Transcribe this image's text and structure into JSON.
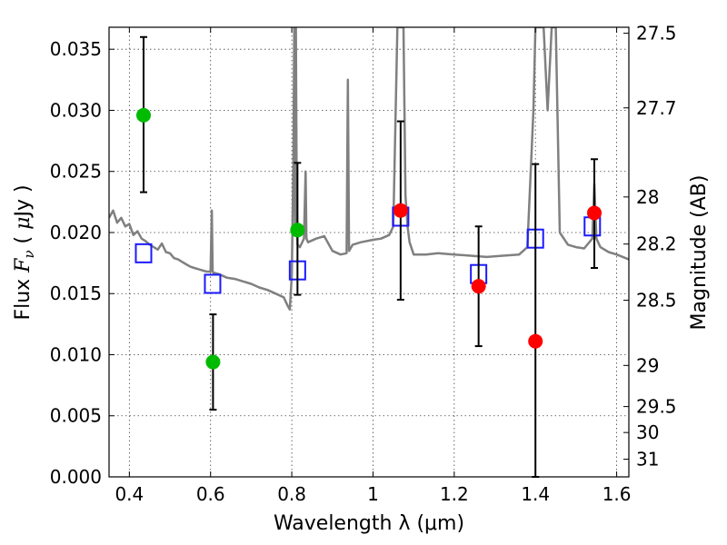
{
  "chart_data": {
    "type": "scatter",
    "xlabel": "Wavelength  λ (μm)",
    "ylabel": "Flux  F_ν  ( μJy )",
    "y2label": "Magnitude (AB)",
    "xlim": [
      0.35,
      1.63
    ],
    "ylim": [
      0.0,
      0.0368
    ],
    "grid": true,
    "x_ticks": [
      0.4,
      0.6,
      0.8,
      1.0,
      1.2,
      1.4,
      1.6
    ],
    "x_tick_labels": [
      "0.4",
      "0.6",
      "0.8",
      "1",
      "1.2",
      "1.4",
      "1.6"
    ],
    "y_ticks": [
      0.0,
      0.005,
      0.01,
      0.015,
      0.02,
      0.025,
      0.03,
      0.035
    ],
    "y_tick_labels": [
      "0.000",
      "0.005",
      "0.010",
      "0.015",
      "0.020",
      "0.025",
      "0.030",
      "0.035"
    ],
    "y2_ticks": [
      {
        "label": "27.5",
        "mag": 27.5
      },
      {
        "label": "27.7",
        "mag": 27.7
      },
      {
        "label": "28",
        "mag": 28.0
      },
      {
        "label": "28.2",
        "mag": 28.2
      },
      {
        "label": "28.5",
        "mag": 28.5
      },
      {
        "label": "29",
        "mag": 29.0
      },
      {
        "label": "29.5",
        "mag": 29.5
      },
      {
        "label": "30",
        "mag": 30.0
      },
      {
        "label": "31",
        "mag": 31.0
      }
    ],
    "series": [
      {
        "color": "#808080",
        "marker": "line",
        "x": [
          0.35,
          0.36,
          0.37,
          0.38,
          0.39,
          0.4,
          0.41,
          0.42,
          0.43,
          0.44,
          0.45,
          0.46,
          0.47,
          0.48,
          0.49,
          0.5,
          0.51,
          0.52,
          0.53,
          0.54,
          0.55,
          0.56,
          0.57,
          0.58,
          0.59,
          0.6,
          0.603,
          0.605,
          0.607,
          0.61,
          0.62,
          0.64,
          0.66,
          0.68,
          0.7,
          0.72,
          0.74,
          0.76,
          0.78,
          0.79,
          0.795,
          0.8,
          0.804,
          0.806,
          0.808,
          0.81,
          0.812,
          0.814,
          0.82,
          0.83,
          0.834,
          0.836,
          0.84,
          0.86,
          0.88,
          0.9,
          0.92,
          0.935,
          0.938,
          0.941,
          0.95,
          0.97,
          1.0,
          1.02,
          1.04,
          1.05,
          1.06,
          1.065,
          1.07,
          1.075,
          1.08,
          1.085,
          1.09,
          1.1,
          1.13,
          1.16,
          1.2,
          1.24,
          1.28,
          1.32,
          1.36,
          1.38,
          1.395,
          1.4,
          1.405,
          1.41,
          1.42,
          1.43,
          1.44,
          1.45,
          1.46,
          1.48,
          1.5,
          1.52,
          1.54,
          1.545,
          1.55,
          1.56,
          1.58,
          1.6,
          1.63
        ],
        "y": [
          0.0212,
          0.0218,
          0.0208,
          0.0212,
          0.0205,
          0.0207,
          0.0198,
          0.0201,
          0.0195,
          0.0193,
          0.019,
          0.0188,
          0.0186,
          0.0191,
          0.0184,
          0.0183,
          0.0179,
          0.0178,
          0.0176,
          0.0174,
          0.0172,
          0.0171,
          0.017,
          0.0169,
          0.0168,
          0.0168,
          0.0218,
          0.0168,
          0.0167,
          0.0167,
          0.0166,
          0.0163,
          0.0162,
          0.016,
          0.0158,
          0.0155,
          0.0153,
          0.015,
          0.0147,
          0.014,
          0.0137,
          0.0165,
          0.026,
          0.0368,
          0.02,
          0.0368,
          0.023,
          0.019,
          0.0188,
          0.0195,
          0.025,
          0.0195,
          0.0192,
          0.0195,
          0.0197,
          0.0185,
          0.0182,
          0.0183,
          0.0325,
          0.0185,
          0.019,
          0.0192,
          0.0194,
          0.0195,
          0.0198,
          0.0205,
          0.0368,
          0.0368,
          0.0368,
          0.0368,
          0.023,
          0.0205,
          0.0192,
          0.0182,
          0.0182,
          0.0183,
          0.0182,
          0.0181,
          0.018,
          0.0181,
          0.0182,
          0.0188,
          0.03,
          0.0368,
          0.0368,
          0.0368,
          0.0368,
          0.03,
          0.0368,
          0.0368,
          0.02,
          0.019,
          0.0188,
          0.0187,
          0.0195,
          0.024,
          0.0195,
          0.0188,
          0.0184,
          0.0182,
          0.0178
        ]
      },
      {
        "color": "#1a1aff",
        "marker": "square",
        "x": [
          0.435,
          0.605,
          0.814,
          1.068,
          1.26,
          1.4,
          1.54
        ],
        "y": [
          0.0183,
          0.0158,
          0.0169,
          0.0213,
          0.0166,
          0.0195,
          0.0205
        ]
      },
      {
        "color": "#00bb00",
        "marker": "circle",
        "x": [
          0.435,
          0.606,
          0.814
        ],
        "y": [
          0.0296,
          0.0094,
          0.0202
        ],
        "yerr_low": [
          0.0233,
          0.0055,
          0.0149
        ],
        "yerr_high": [
          0.036,
          0.0133,
          0.0257
        ]
      },
      {
        "color": "#ff0000",
        "marker": "circle",
        "x": [
          1.068,
          1.26,
          1.4,
          1.545
        ],
        "y": [
          0.0218,
          0.0156,
          0.0111,
          0.0216
        ],
        "yerr_low": [
          0.0145,
          0.0107,
          0.0,
          0.0171
        ],
        "yerr_high": [
          0.0291,
          0.0205,
          0.0256,
          0.026
        ]
      }
    ]
  }
}
